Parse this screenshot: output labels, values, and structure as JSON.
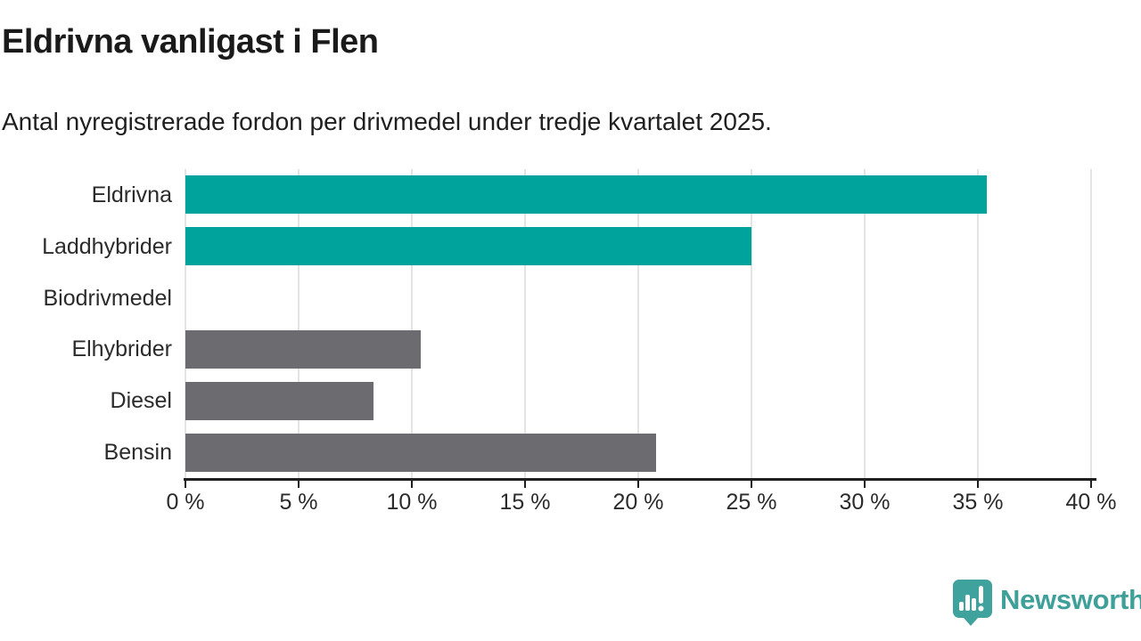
{
  "header": {
    "title": "Eldrivna vanligast i Flen",
    "subtitle": "Antal nyregistrerade fordon per drivmedel under tredje kvartalet 2025."
  },
  "chart_data": {
    "type": "bar",
    "orientation": "horizontal",
    "title": "Eldrivna vanligast i Flen",
    "subtitle": "Antal nyregistrerade fordon per drivmedel under tredje kvartalet 2025.",
    "categories": [
      "Eldrivna",
      "Laddhybrider",
      "Biodrivmedel",
      "Elhybrider",
      "Diesel",
      "Bensin"
    ],
    "values": [
      35.4,
      25.0,
      0,
      10.4,
      8.3,
      20.8
    ],
    "unit": "%",
    "xlim": [
      0,
      40
    ],
    "x_tick_values": [
      0,
      5,
      10,
      15,
      20,
      25,
      30,
      35,
      40
    ],
    "x_tick_labels": [
      "0 %",
      "5 %",
      "10 %",
      "15 %",
      "20 %",
      "25 %",
      "30 %",
      "35 %",
      "40 %"
    ],
    "grid": true,
    "legend": "none",
    "bar_colors": [
      "#00a39b",
      "#00a39b",
      "#6c6c70",
      "#6c6c70",
      "#6c6c70",
      "#6c6c70"
    ]
  },
  "colors": {
    "highlight": "#00a39b",
    "neutral": "#6c6c70",
    "grid": "#e4e4e4",
    "axis": "#1f1f1f",
    "brand": "#3fa09a"
  },
  "footer": {
    "brand": "Newsworthy"
  }
}
